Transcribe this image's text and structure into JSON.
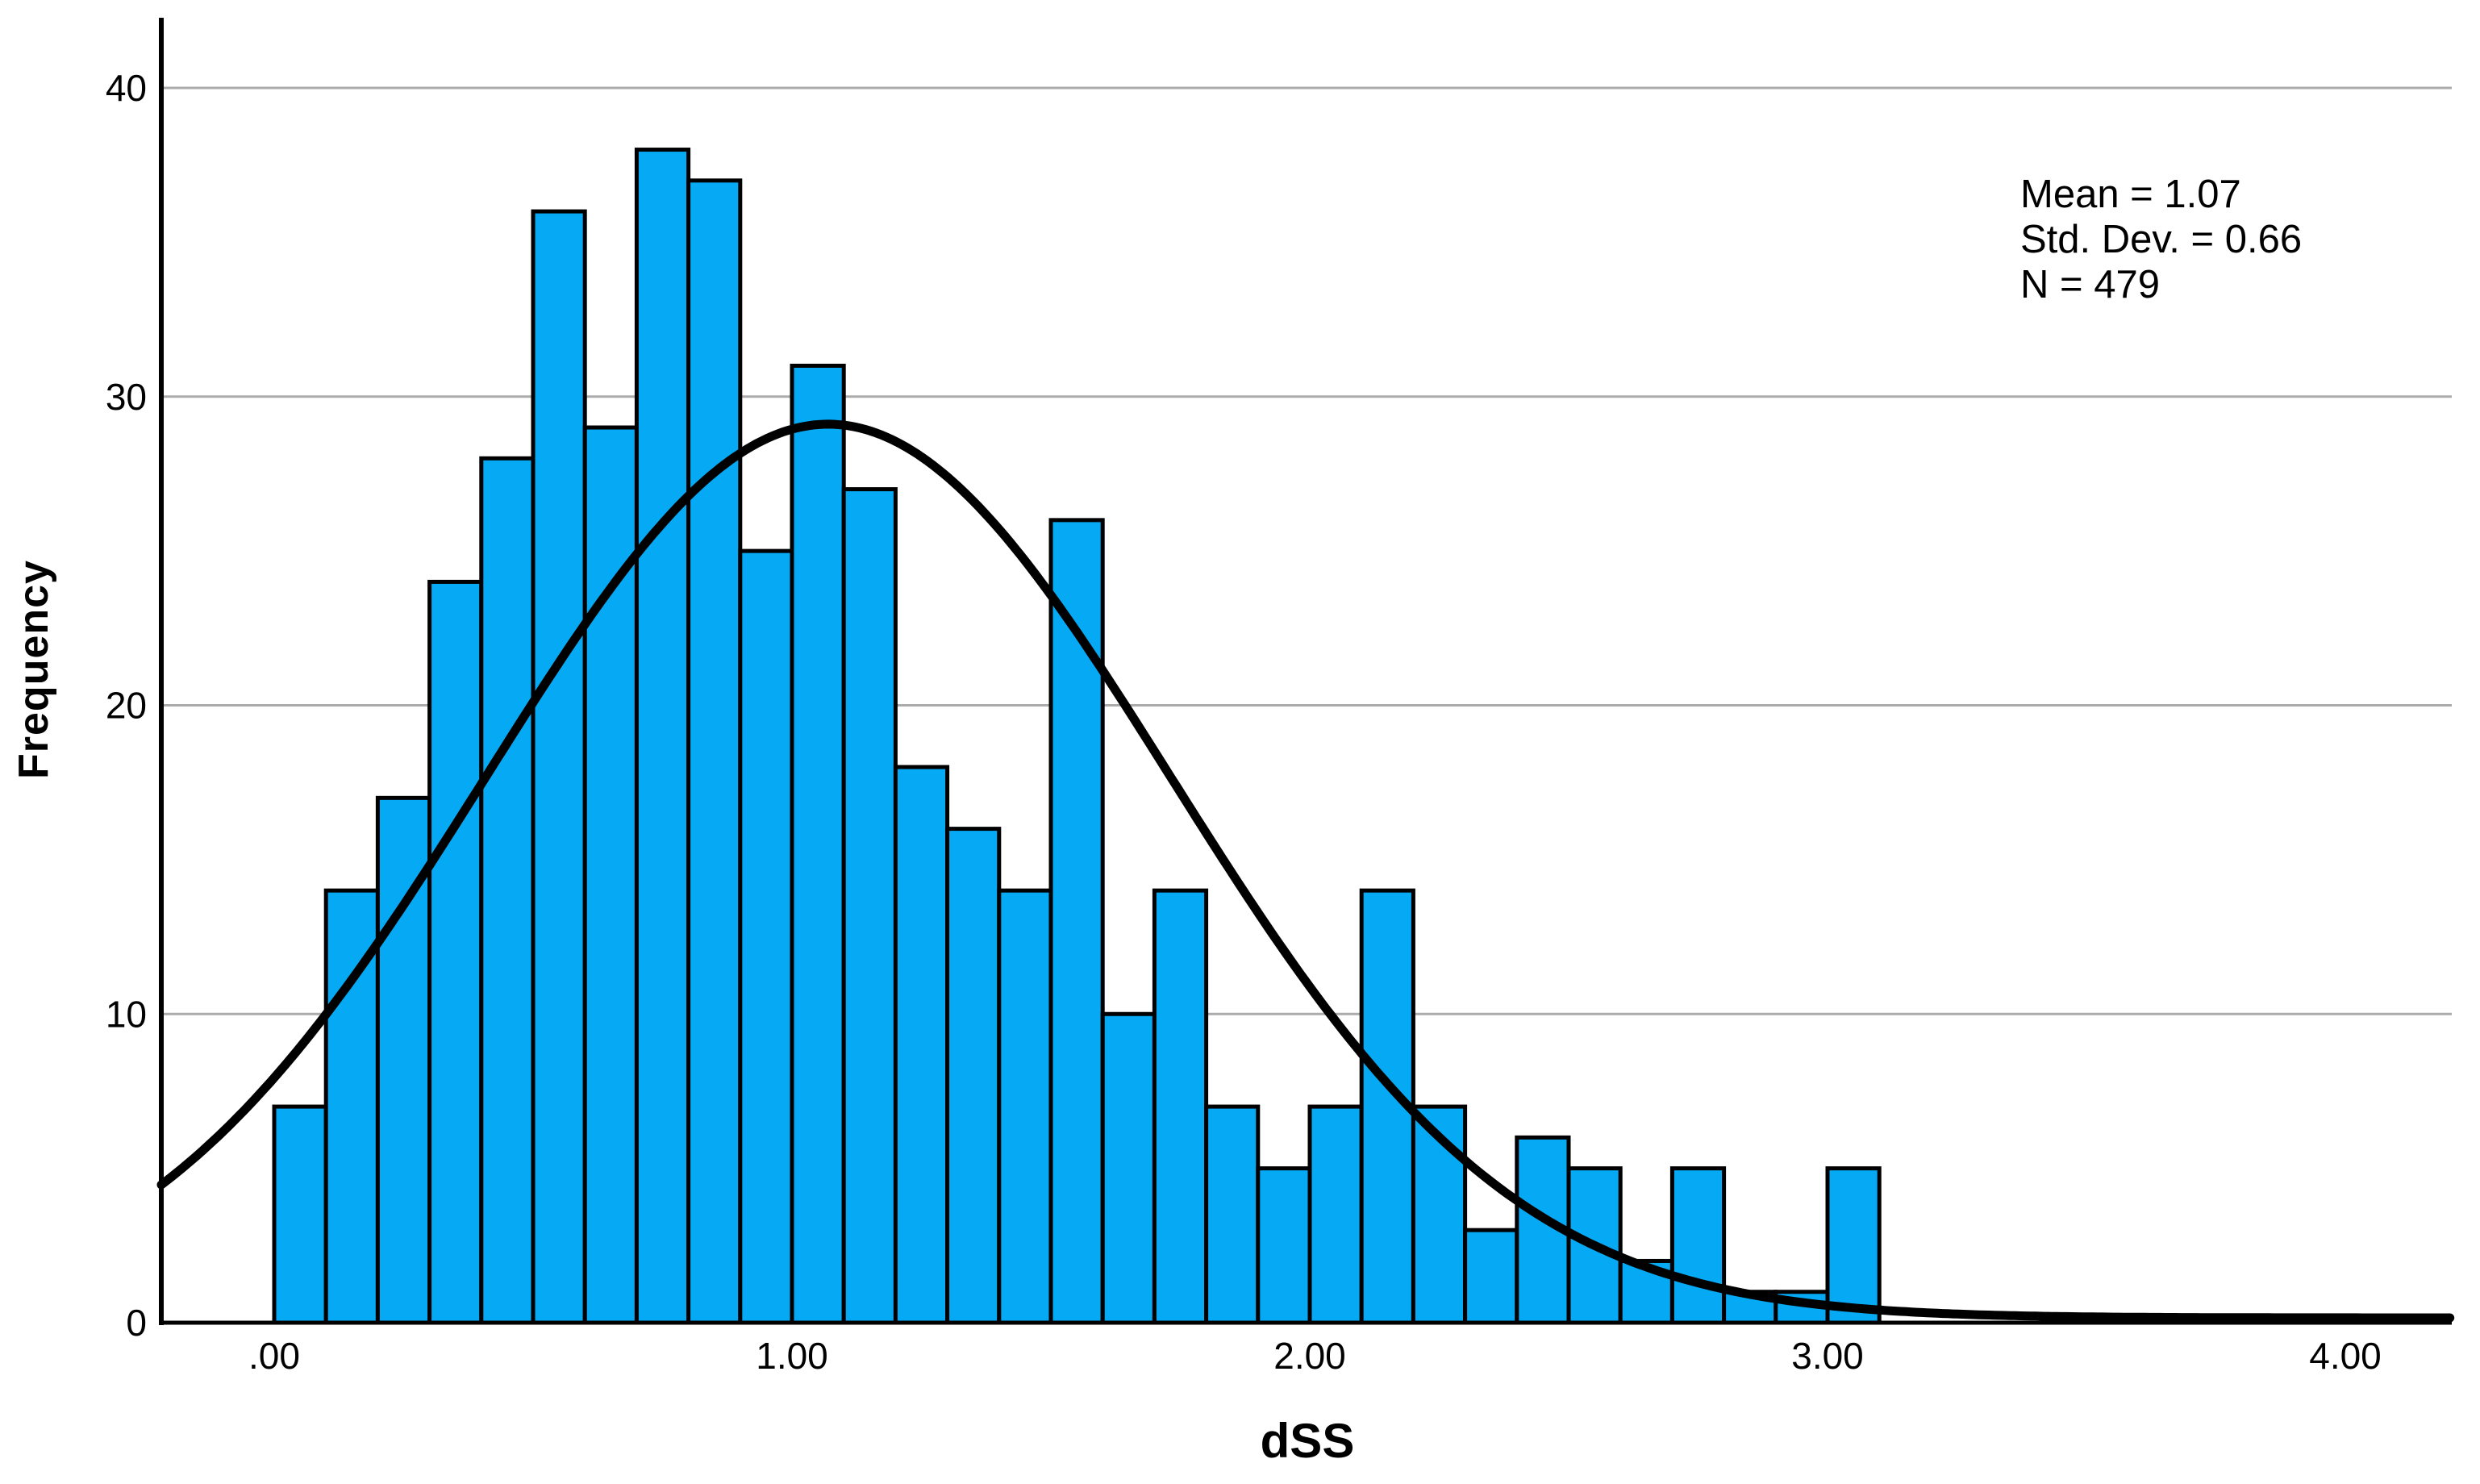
{
  "chart_data": {
    "type": "bar",
    "subtype": "histogram",
    "title": "",
    "xlabel": "dSS",
    "ylabel": "Frequency",
    "bin_width": 0.1,
    "bin_start": 0.0,
    "bin_edges_note": "31 contiguous bins of width 0.1 spanning 0.0 to 3.1",
    "counts": [
      7,
      14,
      17,
      24,
      28,
      36,
      29,
      38,
      37,
      25,
      31,
      27,
      18,
      16,
      14,
      26,
      10,
      14,
      7,
      5,
      7,
      14,
      7,
      3,
      6,
      5,
      2,
      5,
      1,
      1,
      5
    ],
    "x_ticks": [
      {
        "value": 0.0,
        "label": ".00"
      },
      {
        "value": 1.0,
        "label": "1.00"
      },
      {
        "value": 2.0,
        "label": "2.00"
      },
      {
        "value": 3.0,
        "label": "3.00"
      },
      {
        "value": 4.0,
        "label": "4.00"
      }
    ],
    "y_ticks": [
      {
        "value": 0,
        "label": "0"
      },
      {
        "value": 10,
        "label": "10"
      },
      {
        "value": 20,
        "label": "20"
      },
      {
        "value": 30,
        "label": "30"
      },
      {
        "value": 40,
        "label": "40"
      }
    ],
    "xlim": [
      -0.218,
      4.206
    ],
    "ylim": [
      0,
      42.3
    ],
    "grid": "horizontal",
    "legend": "none",
    "normal_curve": {
      "mean": 1.07,
      "std_dev": 0.66,
      "n": 479,
      "peak_height": 28.95
    },
    "stats_box": {
      "mean": "Mean = 1.07",
      "std_dev": "Std. Dev. = 0.66",
      "n": "N = 479"
    },
    "colors": {
      "bar_fill": "#06A9F4",
      "bar_border": "#000000",
      "curve": "#000000",
      "gridline": "#ABABAB",
      "axis": "#000000",
      "text": "#000000",
      "background": "#FFFFFF"
    }
  }
}
